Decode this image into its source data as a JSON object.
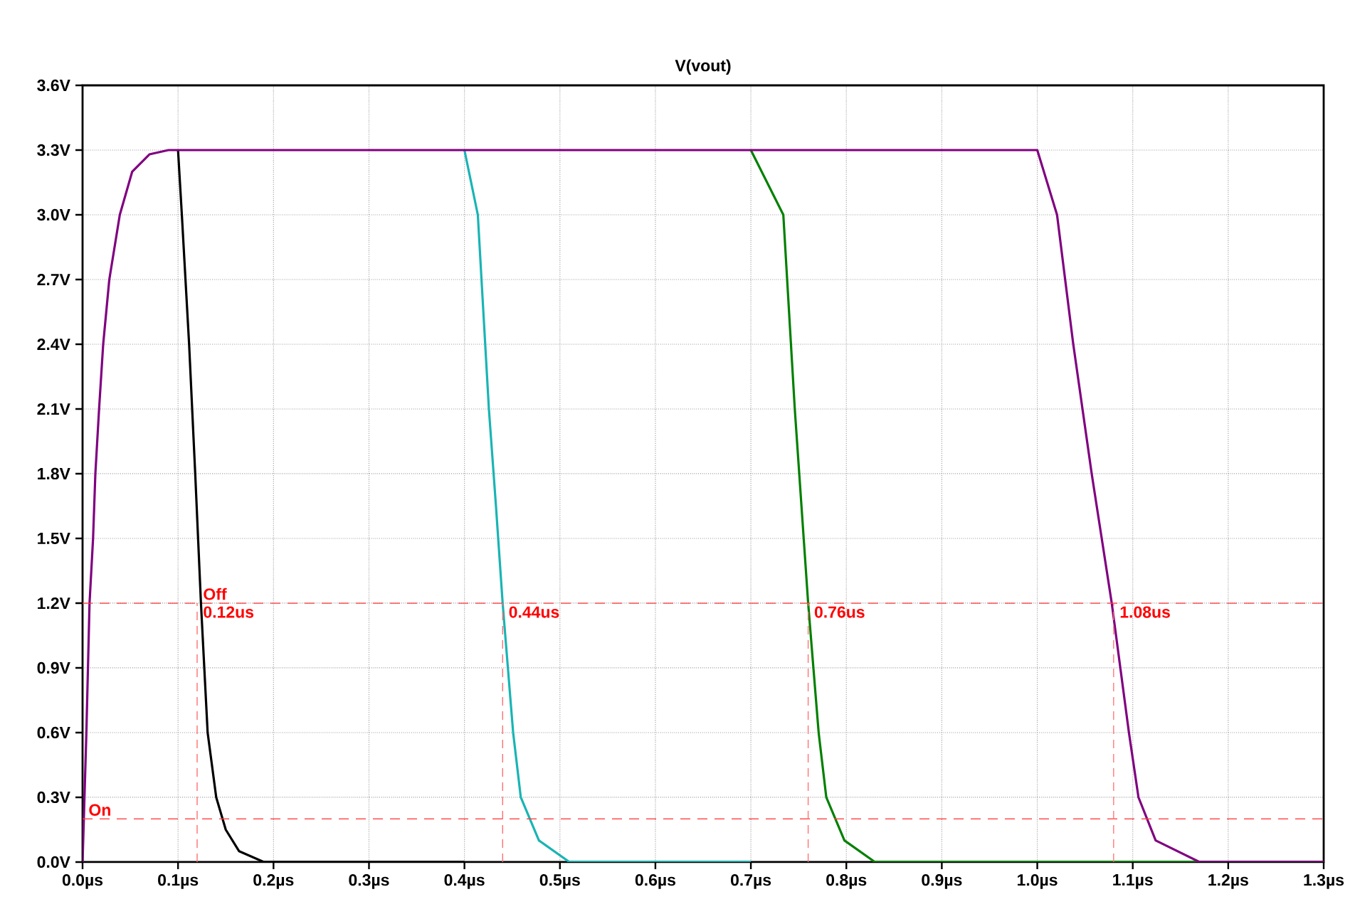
{
  "chart_data": {
    "type": "line",
    "title": "V(vout)",
    "xlim": [
      0,
      1.3
    ],
    "ylim": [
      0,
      3.6
    ],
    "xticks": [
      {
        "value": 0,
        "label": "0.0µs"
      },
      {
        "value": 0.1,
        "label": "0.1µs"
      },
      {
        "value": 0.2,
        "label": "0.2µs"
      },
      {
        "value": 0.3,
        "label": "0.3µs"
      },
      {
        "value": 0.4,
        "label": "0.4µs"
      },
      {
        "value": 0.5,
        "label": "0.5µs"
      },
      {
        "value": 0.6,
        "label": "0.6µs"
      },
      {
        "value": 0.7,
        "label": "0.7µs"
      },
      {
        "value": 0.8,
        "label": "0.8µs"
      },
      {
        "value": 0.9,
        "label": "0.9µs"
      },
      {
        "value": 1.0,
        "label": "1.0µs"
      },
      {
        "value": 1.1,
        "label": "1.1µs"
      },
      {
        "value": 1.2,
        "label": "1.2µs"
      },
      {
        "value": 1.3,
        "label": "1.3µs"
      }
    ],
    "yticks": [
      {
        "value": 0,
        "label": "0.0V"
      },
      {
        "value": 0.3,
        "label": "0.3V"
      },
      {
        "value": 0.6,
        "label": "0.6V"
      },
      {
        "value": 0.9,
        "label": "0.9V"
      },
      {
        "value": 1.2,
        "label": "1.2V"
      },
      {
        "value": 1.5,
        "label": "1.5V"
      },
      {
        "value": 1.8,
        "label": "1.8V"
      },
      {
        "value": 2.1,
        "label": "2.1V"
      },
      {
        "value": 2.4,
        "label": "2.4V"
      },
      {
        "value": 2.7,
        "label": "2.7V"
      },
      {
        "value": 3.0,
        "label": "3.0V"
      },
      {
        "value": 3.3,
        "label": "3.3V"
      },
      {
        "value": 3.6,
        "label": "3.6V"
      }
    ],
    "grid": true,
    "line_style": "solid",
    "series": [
      {
        "color": "#000000",
        "x": [
          0.1,
          0.104,
          0.1116,
          0.118,
          0.124,
          0.131,
          0.14,
          0.15,
          0.164,
          0.19,
          0.4
        ],
        "values": [
          3.3,
          3.0,
          2.4,
          1.8,
          1.2,
          0.6,
          0.3,
          0.15,
          0.05,
          0,
          0
        ]
      },
      {
        "color": "#19b4b4",
        "x": [
          0.4,
          0.414,
          0.4256,
          0.433,
          0.44,
          0.451,
          0.459,
          0.478,
          0.51,
          0.7
        ],
        "values": [
          3.3,
          3.0,
          2.1,
          1.65,
          1.2,
          0.6,
          0.3,
          0.1,
          0,
          0
        ]
      },
      {
        "color": "#008000",
        "x": [
          0.7,
          0.734,
          0.746,
          0.753,
          0.76,
          0.771,
          0.779,
          0.798,
          0.83,
          1.3
        ],
        "values": [
          3.3,
          3.0,
          2.1,
          1.65,
          1.2,
          0.6,
          0.3,
          0.1,
          0,
          0
        ]
      },
      {
        "color": "#800080",
        "x": [
          0,
          0.004,
          0.0073,
          0.011,
          0.0134,
          0.0173,
          0.0216,
          0.028,
          0.039,
          0.052,
          0.07,
          0.09,
          1.0,
          1.0207,
          1.0377,
          1.057,
          1.078,
          1.096,
          1.106,
          1.124,
          1.17,
          1.3
        ],
        "values": [
          0,
          0.6,
          1.2,
          1.5,
          1.8,
          2.1,
          2.4,
          2.7,
          3.0,
          3.2,
          3.28,
          3.3,
          3.3,
          3.0,
          2.4,
          1.8,
          1.2,
          0.6,
          0.3,
          0.1,
          0,
          0
        ]
      }
    ],
    "ref_lines": [
      {
        "axis": "y",
        "value": 1.2,
        "color": "#ff4040",
        "line_style": "dashed"
      },
      {
        "axis": "y",
        "value": 0.2,
        "color": "#ff4040",
        "line_style": "dashed"
      }
    ],
    "annotations": [
      {
        "text": "Off",
        "x": 0.12,
        "y": 1.2
      },
      {
        "text": "0.12us",
        "x": 0.12,
        "y": 1.2
      },
      {
        "text": "0.44us",
        "x": 0.44,
        "y": 1.2
      },
      {
        "text": "0.76us",
        "x": 0.76,
        "y": 1.2
      },
      {
        "text": "1.08us",
        "x": 1.08,
        "y": 1.2
      },
      {
        "text": "On",
        "x": 0,
        "y": 0.2
      }
    ]
  }
}
